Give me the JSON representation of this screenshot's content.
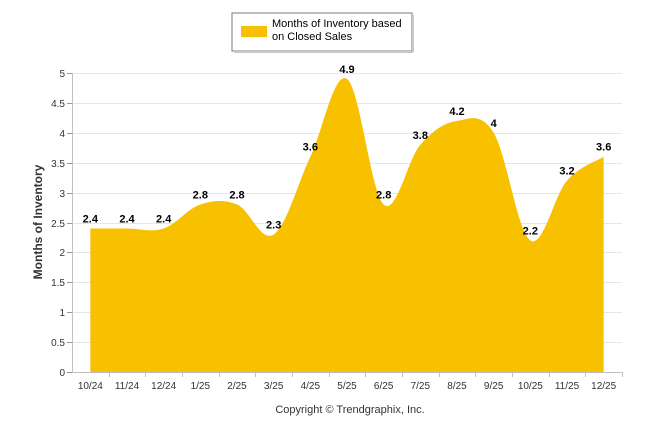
{
  "chart_data": {
    "type": "area",
    "categories": [
      "10/24",
      "11/24",
      "12/24",
      "1/25",
      "2/25",
      "3/25",
      "4/25",
      "5/25",
      "6/25",
      "7/25",
      "8/25",
      "9/25",
      "10/25",
      "11/25",
      "12/25"
    ],
    "series": [
      {
        "name": "Months of Inventory based on Closed Sales",
        "values": [
          2.4,
          2.4,
          2.4,
          2.8,
          2.8,
          2.3,
          3.6,
          4.9,
          2.8,
          3.8,
          4.2,
          4,
          2.2,
          3.2,
          3.6
        ]
      }
    ],
    "data_labels": [
      "2.4",
      "2.4",
      "2.4",
      "2.8",
      "2.8",
      "2.3",
      "3.6",
      "4.9",
      "2.8",
      "3.8",
      "4.2",
      "4",
      "2.2",
      "3.2",
      "3.6"
    ],
    "ylabel": "Months of Inventory",
    "xlabel": "",
    "ylim": [
      0,
      5
    ],
    "yticks": [
      "0",
      "0.5",
      "1",
      "1.5",
      "2",
      "2.5",
      "3",
      "3.5",
      "4",
      "4.5",
      "5"
    ],
    "grid": true,
    "legend": {
      "position": "top-center",
      "label_line1": "Months of Inventory based",
      "label_line2": "on Closed Sales"
    },
    "color": "#F7C100"
  },
  "footer": {
    "copyright": "Copyright © Trendgraphix, Inc."
  }
}
